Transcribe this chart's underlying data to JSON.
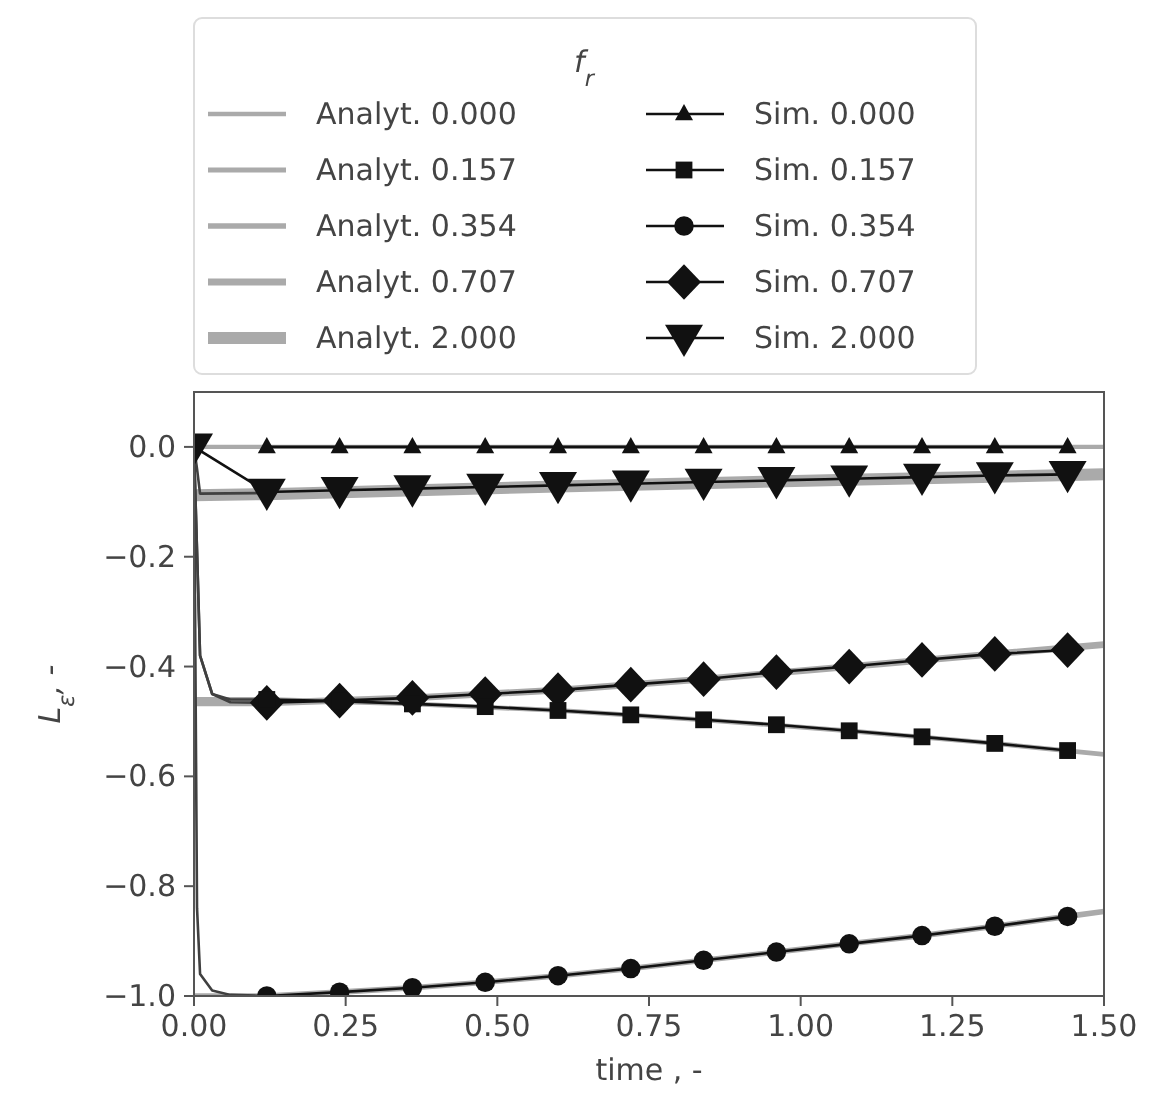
{
  "chart_data": {
    "type": "line",
    "xlabel": "time , -",
    "ylabel": "L$_{ε}$, -",
    "legend_title": "f$_{r}$",
    "legend": "top",
    "grid": false,
    "xlim": [
      0,
      1.5
    ],
    "ylim": [
      -1.0,
      0.1
    ],
    "xticks": [
      {
        "value": 0,
        "label": "0.00"
      },
      {
        "value": 0.25,
        "label": "0.25"
      },
      {
        "value": 0.5,
        "label": "0.50"
      },
      {
        "value": 0.75,
        "label": "0.75"
      },
      {
        "value": 1,
        "label": "1.00"
      },
      {
        "value": 1.25,
        "label": "1.25"
      },
      {
        "value": 1.5,
        "label": "1.50"
      }
    ],
    "yticks": [
      {
        "value": -1,
        "label": "−1.0"
      },
      {
        "value": -0.8,
        "label": "−0.8"
      },
      {
        "value": -0.6,
        "label": "−0.6"
      },
      {
        "value": -0.4,
        "label": "−0.4"
      },
      {
        "value": -0.2,
        "label": "−0.2"
      },
      {
        "value": 0,
        "label": "0.0"
      }
    ],
    "series": [
      {
        "name": "Analyt. 0.000",
        "color": "#aaaaaa",
        "marker": "none",
        "x": [
          0,
          1.5
        ],
        "values": [
          0,
          0
        ]
      },
      {
        "name": "Analyt. 0.157",
        "color": "#aaaaaa",
        "marker": "none",
        "x": [
          0,
          0.12,
          0.36,
          0.6,
          0.84,
          1.08,
          1.32,
          1.5
        ],
        "values": [
          -0.46,
          -0.46,
          -0.468,
          -0.48,
          -0.497,
          -0.517,
          -0.54,
          -0.56
        ]
      },
      {
        "name": "Analyt. 0.354",
        "color": "#aaaaaa",
        "marker": "none",
        "x": [
          0,
          0.12,
          0.24,
          0.36,
          0.48,
          0.6,
          0.72,
          0.84,
          0.96,
          1.08,
          1.2,
          1.32,
          1.44,
          1.5
        ],
        "values": [
          -1.0,
          -1.0,
          -0.993,
          -0.985,
          -0.975,
          -0.963,
          -0.95,
          -0.935,
          -0.92,
          -0.905,
          -0.89,
          -0.873,
          -0.855,
          -0.846
        ]
      },
      {
        "name": "Analyt. 0.707",
        "color": "#aaaaaa",
        "marker": "none",
        "x": [
          0,
          0.12,
          0.36,
          0.6,
          0.84,
          1.08,
          1.32,
          1.5
        ],
        "values": [
          -0.466,
          -0.466,
          -0.457,
          -0.443,
          -0.423,
          -0.4,
          -0.377,
          -0.36
        ]
      },
      {
        "name": "Analyt. 2.000",
        "color": "#aaaaaa",
        "marker": "none",
        "x": [
          0,
          0.12,
          0.6,
          1.08,
          1.5
        ],
        "values": [
          -0.088,
          -0.086,
          -0.072,
          -0.06,
          -0.05
        ]
      },
      {
        "color": "#404040",
        "marker": "none",
        "x": [
          0,
          0.01,
          0.03,
          0.06,
          0.12
        ],
        "values": [
          0,
          -0.38,
          -0.45,
          -0.46,
          -0.46
        ]
      },
      {
        "color": "#404040",
        "marker": "none",
        "x": [
          0,
          0.005,
          0.01,
          0.03,
          0.06,
          0.12
        ],
        "values": [
          0,
          -0.84,
          -0.96,
          -0.99,
          -0.998,
          -1.0
        ]
      },
      {
        "color": "#404040",
        "marker": "none",
        "x": [
          0,
          0.01,
          0.03,
          0.06,
          0.12
        ],
        "values": [
          0,
          -0.38,
          -0.45,
          -0.465,
          -0.466
        ]
      },
      {
        "color": "#404040",
        "marker": "none",
        "x": [
          0,
          0.005,
          0.01,
          0.12
        ],
        "values": [
          0,
          -0.04,
          -0.085,
          -0.084
        ]
      },
      {
        "name": "Sim. 0.000",
        "color": "#111111",
        "marker": "triangle",
        "x": [
          0.12,
          0.24,
          0.36,
          0.48,
          0.6,
          0.72,
          0.84,
          0.96,
          1.08,
          1.2,
          1.32,
          1.44
        ],
        "values": [
          0,
          0,
          0,
          0,
          0,
          0,
          0,
          0,
          0,
          0,
          0,
          0
        ]
      },
      {
        "name": "Sim. 0.157",
        "color": "#111111",
        "marker": "square",
        "x": [
          0.12,
          0.24,
          0.36,
          0.48,
          0.6,
          0.72,
          0.84,
          0.96,
          1.08,
          1.2,
          1.32,
          1.44
        ],
        "values": [
          -0.46,
          -0.463,
          -0.468,
          -0.473,
          -0.48,
          -0.488,
          -0.497,
          -0.506,
          -0.517,
          -0.528,
          -0.54,
          -0.553
        ]
      },
      {
        "name": "Sim. 0.354",
        "color": "#111111",
        "marker": "circle",
        "x": [
          0.12,
          0.24,
          0.36,
          0.48,
          0.6,
          0.72,
          0.84,
          0.96,
          1.08,
          1.2,
          1.32,
          1.44
        ],
        "values": [
          -1.0,
          -0.993,
          -0.985,
          -0.975,
          -0.963,
          -0.95,
          -0.935,
          -0.92,
          -0.905,
          -0.89,
          -0.873,
          -0.855
        ]
      },
      {
        "name": "Sim. 0.707",
        "color": "#111111",
        "marker": "diamond",
        "x": [
          0.12,
          0.24,
          0.36,
          0.48,
          0.6,
          0.72,
          0.84,
          0.96,
          1.08,
          1.2,
          1.32,
          1.44
        ],
        "values": [
          -0.466,
          -0.462,
          -0.457,
          -0.45,
          -0.443,
          -0.433,
          -0.423,
          -0.41,
          -0.4,
          -0.388,
          -0.377,
          -0.37
        ]
      },
      {
        "name": "Sim. 2.000",
        "color": "#111111",
        "marker": "triangle-down",
        "x": [
          0,
          0.12,
          0.24,
          0.36,
          0.48,
          0.6,
          0.72,
          0.84,
          0.96,
          1.08,
          1.2,
          1.32,
          1.44
        ],
        "values": [
          0,
          -0.082,
          -0.079,
          -0.076,
          -0.073,
          -0.07,
          -0.067,
          -0.064,
          -0.061,
          -0.058,
          -0.055,
          -0.052,
          -0.05
        ]
      }
    ]
  }
}
